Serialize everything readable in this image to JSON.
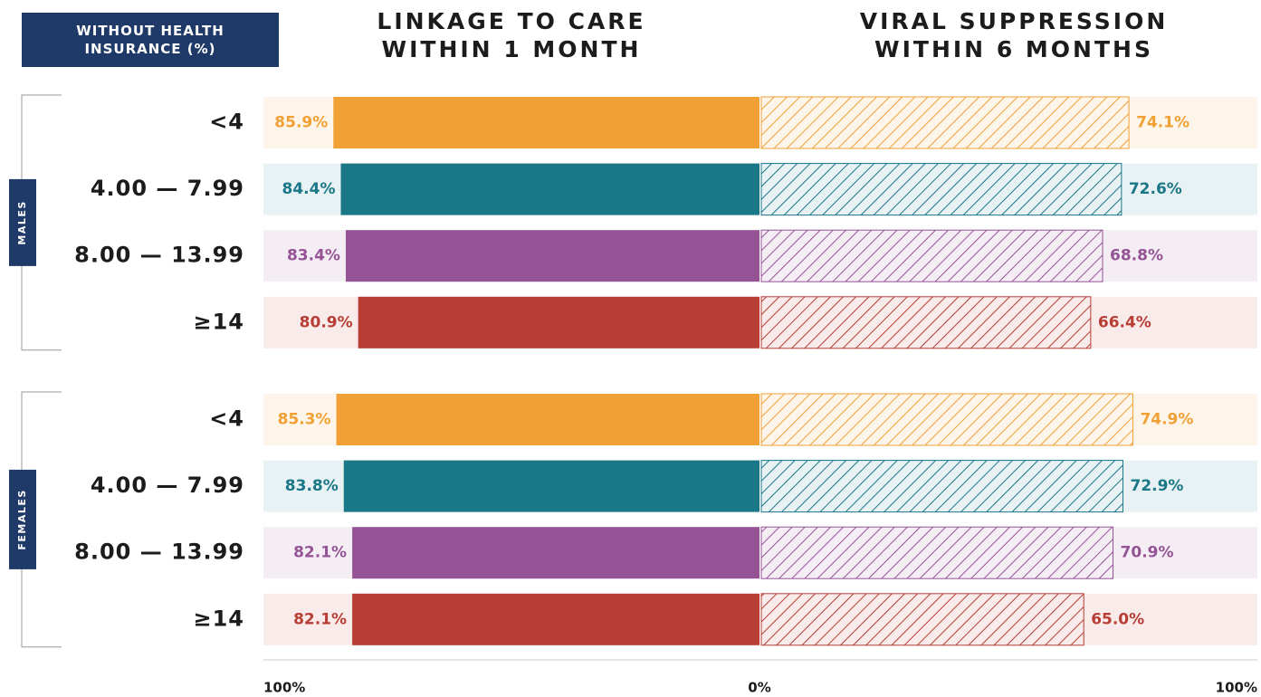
{
  "chart_data": {
    "type": "butterfly_bar",
    "title": "WITHOUT HEALTH INSURANCE (%)",
    "category_colors": [
      "#f0a035",
      "#1a7788",
      "#955396",
      "#b73d35"
    ],
    "series": [
      {
        "name": "LINKAGE TO CARE WITHIN 1 MONTH",
        "pattern": "solid"
      },
      {
        "name": "VIRAL SUPPRESSION WITHIN 6 MONTHS",
        "pattern": "hatched"
      }
    ],
    "groups": [
      {
        "name": "MALES",
        "categories": [
          "<4",
          "4.00 — 7.99",
          "8.00 — 13.99",
          "≥14"
        ],
        "series": [
          {
            "values": [
              85.9,
              84.4,
              83.4,
              80.9
            ],
            "value_labels": [
              "85.9%",
              "84.4%",
              "83.4%",
              "80.9%"
            ]
          },
          {
            "values": [
              74.1,
              72.6,
              68.8,
              66.4
            ],
            "value_labels": [
              "74.1%",
              "72.6%",
              "68.8%",
              "66.4%"
            ]
          }
        ]
      },
      {
        "name": "FEMALES",
        "categories": [
          "<4",
          "4.00 — 7.99",
          "8.00 — 13.99",
          "≥14"
        ],
        "series": [
          {
            "values": [
              85.3,
              83.8,
              82.1,
              82.1
            ],
            "value_labels": [
              "85.3%",
              "83.8%",
              "82.1%",
              "82.1%"
            ]
          },
          {
            "values": [
              74.9,
              72.9,
              70.9,
              65.0
            ],
            "value_labels": [
              "74.9%",
              "72.9%",
              "70.9%",
              "65.0%"
            ]
          }
        ]
      }
    ],
    "xlim": [
      0,
      100
    ],
    "xticks": [
      {
        "value": 100,
        "label": "100%"
      },
      {
        "value": 0,
        "label": "0%"
      }
    ],
    "x2lim": [
      0,
      100
    ],
    "x2ticks": [
      {
        "value": 100,
        "label": "100%"
      }
    ]
  }
}
